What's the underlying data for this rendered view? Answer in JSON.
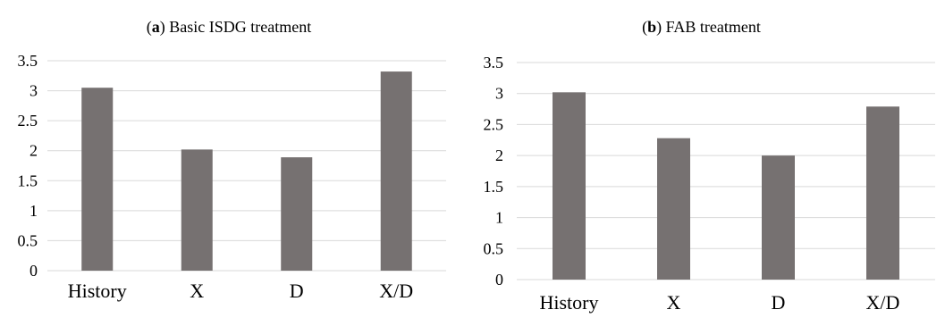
{
  "chart_data": [
    {
      "type": "bar",
      "panel_label": "a",
      "title": "Basic ISDG treatment",
      "categories": [
        "History",
        "X",
        "D",
        "X/D"
      ],
      "values": [
        3.05,
        2.02,
        1.89,
        3.32
      ],
      "ylim": [
        0,
        3.5
      ],
      "yticks": [
        "0",
        "0.5",
        "1",
        "1.5",
        "2",
        "2.5",
        "3",
        "3.5"
      ],
      "xlabel": "",
      "ylabel": "",
      "grid": true,
      "bar_color": "#767171",
      "grid_color": "#d9d9d9"
    },
    {
      "type": "bar",
      "panel_label": "b",
      "title": "FAB treatment",
      "categories": [
        "History",
        "X",
        "D",
        "X/D"
      ],
      "values": [
        3.02,
        2.28,
        2.0,
        2.79
      ],
      "ylim": [
        0,
        3.5
      ],
      "yticks": [
        "0",
        "0.5",
        "1",
        "1.5",
        "2",
        "2.5",
        "3",
        "3.5"
      ],
      "xlabel": "",
      "ylabel": "",
      "grid": true,
      "bar_color": "#767171",
      "grid_color": "#d9d9d9"
    }
  ]
}
